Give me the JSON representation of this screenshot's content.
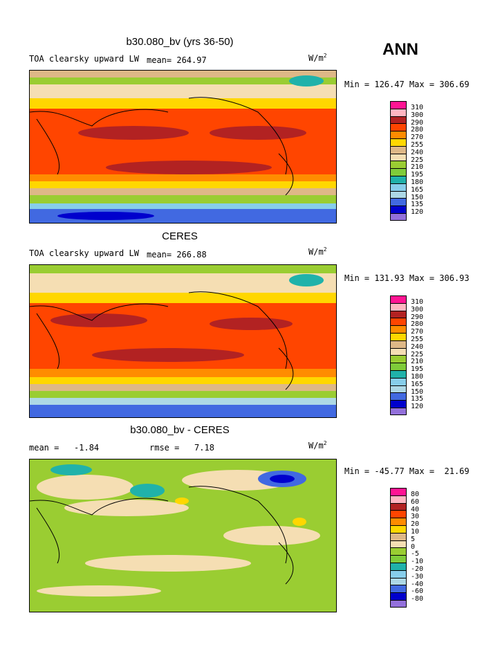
{
  "header": {
    "season": "ANN"
  },
  "panels": [
    {
      "title": "b30.080_bv (yrs 36-50)",
      "left_label": "TOA clearsky upward LW",
      "mean_label": "mean= 264.97",
      "units": "W/m",
      "units_sup": "2",
      "minmax": "Min = 126.47 Max = 306.69",
      "levels": [
        "310",
        "300",
        "290",
        "280",
        "270",
        "255",
        "240",
        "225",
        "210",
        "195",
        "180",
        "165",
        "150",
        "135",
        "120"
      ]
    },
    {
      "title": "CERES",
      "left_label": "TOA clearsky upward LW",
      "mean_label": "mean= 266.88",
      "units": "W/m",
      "units_sup": "2",
      "minmax": "Min = 131.93 Max = 306.93",
      "levels": [
        "310",
        "300",
        "290",
        "280",
        "270",
        "255",
        "240",
        "225",
        "210",
        "195",
        "180",
        "165",
        "150",
        "135",
        "120"
      ]
    },
    {
      "title": "b30.080_bv - CERES",
      "left_label": "mean =   -1.84",
      "mean_label": "rmse =   7.18",
      "units": "W/m",
      "units_sup": "2",
      "minmax": "Min = -45.77 Max =  21.69",
      "levels": [
        "80",
        "60",
        "40",
        "30",
        "20",
        "10",
        "5",
        "0",
        "-5",
        "-10",
        "-20",
        "-30",
        "-40",
        "-60",
        "-80"
      ]
    }
  ],
  "colors": {
    "scale": [
      "#ff1493",
      "#ffb6c1",
      "#b22222",
      "#ff4500",
      "#ff8c00",
      "#ffd700",
      "#deb887",
      "#f5deb3",
      "#9acd32",
      "#7fcc3a",
      "#20b2aa",
      "#87ceeb",
      "#add8e6",
      "#4169e1",
      "#0000cd",
      "#9370db"
    ],
    "ocean_hot": "#ff4500",
    "land": "#000000"
  }
}
